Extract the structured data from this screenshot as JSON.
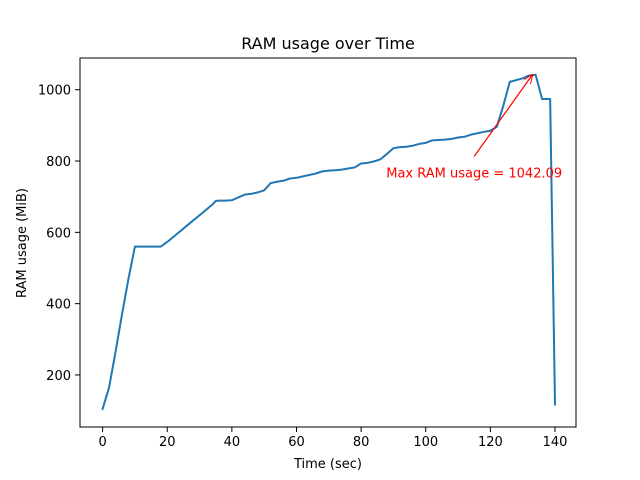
{
  "chart_data": {
    "type": "line",
    "title": "RAM usage over Time",
    "xlabel": "Time (sec)",
    "ylabel": "RAM usage (MiB)",
    "xlim": [
      -7,
      146.5
    ],
    "ylim": [
      54,
      1089
    ],
    "xticks": [
      0,
      20,
      40,
      60,
      80,
      100,
      120,
      140
    ],
    "yticks": [
      200,
      400,
      600,
      800,
      1000
    ],
    "grid": false,
    "series": [
      {
        "color": "#1f77b4",
        "x": [
          0,
          2,
          4,
          6,
          8,
          10,
          12,
          14,
          16,
          18,
          20,
          22,
          24,
          26,
          28,
          30,
          32,
          34,
          35,
          36,
          38,
          40,
          42,
          44,
          46,
          48,
          50,
          52,
          54,
          56,
          58,
          60,
          62,
          64,
          66,
          68,
          70,
          72,
          74,
          76,
          78,
          80,
          82,
          84,
          86,
          88,
          90,
          92,
          94,
          96,
          98,
          100,
          102,
          104,
          106,
          108,
          110,
          112,
          114,
          116,
          118,
          120,
          122,
          124,
          126,
          128,
          130,
          132,
          134,
          136,
          138,
          138.5,
          140
        ],
        "y": [
          105,
          165,
          265,
          370,
          470,
          560,
          560,
          560,
          560,
          560,
          573,
          588,
          603,
          618,
          633,
          648,
          663,
          678,
          688,
          689,
          689,
          690,
          698,
          706,
          708,
          712,
          718,
          738,
          742,
          745,
          751,
          753,
          757,
          761,
          765,
          771,
          773,
          774,
          776,
          779,
          782,
          793,
          795,
          799,
          805,
          820,
          836,
          839,
          840,
          843,
          848,
          851,
          858,
          859,
          860,
          862,
          866,
          868,
          874,
          878,
          882,
          885,
          896,
          955,
          1022,
          1027,
          1032,
          1040,
          1042.09,
          974,
          974,
          974,
          117
        ]
      }
    ],
    "annotation": {
      "text": "Max RAM usage = 1042.09",
      "color": "#ff0000",
      "point": [
        133,
        1042.09
      ],
      "text_anchor_point": [
        115,
        785
      ]
    }
  }
}
